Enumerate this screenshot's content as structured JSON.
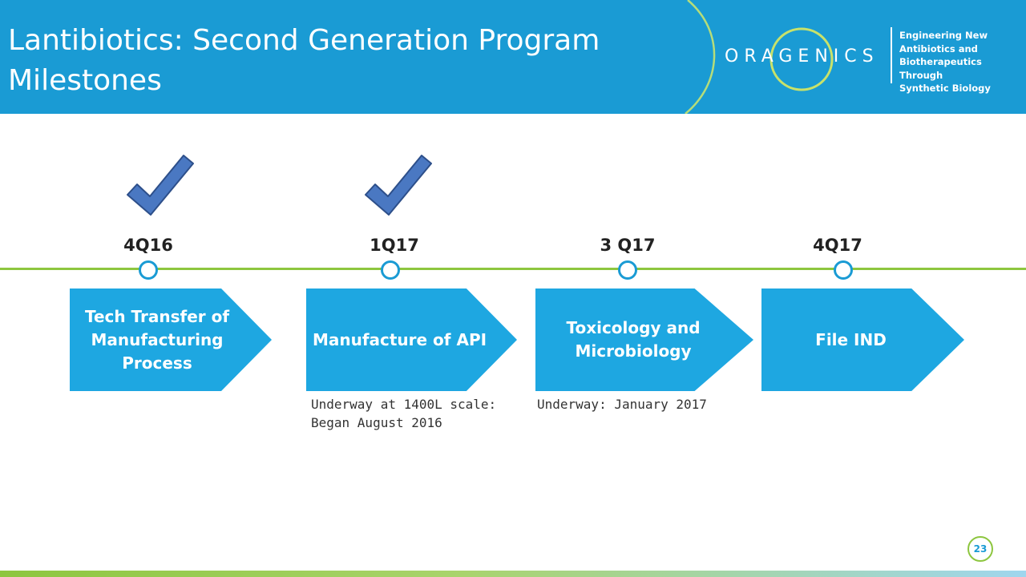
{
  "header": {
    "title_line1": "Lantibiotics: Second Generation Program",
    "title_line2": "Milestones",
    "logo_text": "ORAGENICS",
    "tagline": [
      "Engineering New",
      "Antibiotics and",
      "Biotherapeutics Through",
      "Synthetic Biology"
    ]
  },
  "milestones": [
    {
      "quarter": "4Q16",
      "label_lines": [
        "Tech Transfer of",
        "Manufacturing",
        "Process"
      ],
      "completed": true,
      "note": []
    },
    {
      "quarter": "1Q17",
      "label_lines": [
        "Manufacture of API"
      ],
      "completed": true,
      "note": [
        "Underway at 1400L scale:",
        "Began August 2016"
      ]
    },
    {
      "quarter": "3 Q17",
      "label_lines": [
        "Toxicology and",
        "Microbiology"
      ],
      "completed": false,
      "note": [
        "Underway: January 2017"
      ]
    },
    {
      "quarter": "4Q17",
      "label_lines": [
        "File IND"
      ],
      "completed": false,
      "note": []
    }
  ],
  "page_number": "23",
  "colors": {
    "header_blue": "#1a9bd4",
    "arrow_blue": "#1ea7e1",
    "timeline_green": "#8dc63f",
    "check_blue": "#4a78c2"
  }
}
